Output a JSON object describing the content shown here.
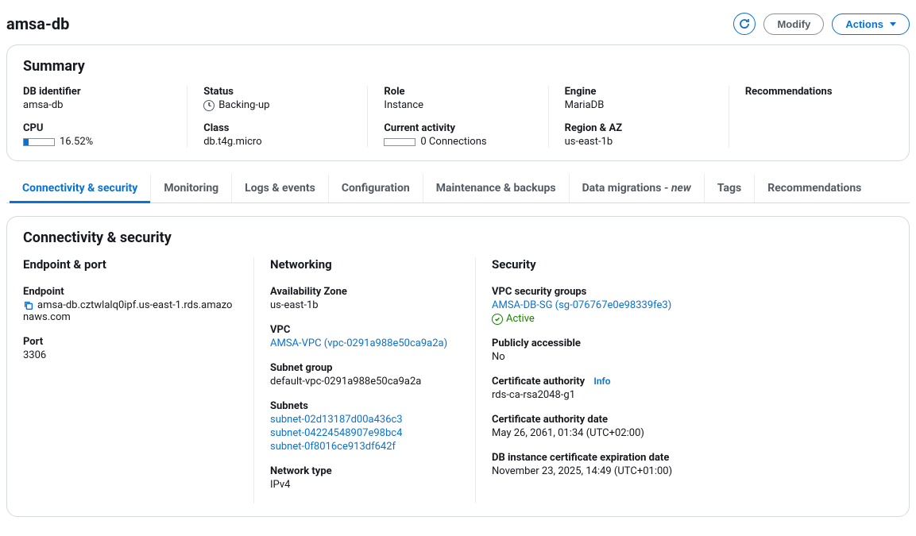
{
  "page": {
    "title": "amsa-db",
    "modify_label": "Modify",
    "actions_label": "Actions"
  },
  "summary": {
    "title": "Summary",
    "db_identifier_label": "DB identifier",
    "db_identifier": "amsa-db",
    "cpu_label": "CPU",
    "cpu_percent": 16.52,
    "cpu_text": "16.52%",
    "status_label": "Status",
    "status": "Backing-up",
    "class_label": "Class",
    "class": "db.t4g.micro",
    "role_label": "Role",
    "role": "Instance",
    "activity_label": "Current activity",
    "activity_connections": 0,
    "activity_text": "0 Connections",
    "engine_label": "Engine",
    "engine": "MariaDB",
    "region_label": "Region & AZ",
    "region": "us-east-1b",
    "recommendations_label": "Recommendations"
  },
  "tabs": {
    "connectivity": "Connectivity & security",
    "monitoring": "Monitoring",
    "logs": "Logs & events",
    "configuration": "Configuration",
    "maintenance": "Maintenance & backups",
    "migrations_prefix": "Data migrations - ",
    "migrations_suffix": "new",
    "tags": "Tags",
    "recommendations": "Recommendations"
  },
  "connectivity": {
    "title": "Connectivity & security",
    "endpoint_port_heading": "Endpoint & port",
    "endpoint_label": "Endpoint",
    "endpoint": "amsa-db.cztwlalq0ipf.us-east-1.rds.amazonaws.com",
    "port_label": "Port",
    "port": "3306",
    "networking_heading": "Networking",
    "az_label": "Availability Zone",
    "az": "us-east-1b",
    "vpc_label": "VPC",
    "vpc": "AMSA-VPC (vpc-0291a988e50ca9a2a)",
    "subnet_group_label": "Subnet group",
    "subnet_group": "default-vpc-0291a988e50ca9a2a",
    "subnets_label": "Subnets",
    "subnets": [
      "subnet-02d13187d00a436c3",
      "subnet-04224548907e98bc4",
      "subnet-0f8016ce913df642f"
    ],
    "network_type_label": "Network type",
    "network_type": "IPv4",
    "security_heading": "Security",
    "sg_label": "VPC security groups",
    "sg": "AMSA-DB-SG (sg-076767e0e98339fe3)",
    "sg_status": "Active",
    "public_label": "Publicly accessible",
    "public": "No",
    "ca_label": "Certificate authority",
    "ca_info": "Info",
    "ca": "rds-ca-rsa2048-g1",
    "ca_date_label": "Certificate authority date",
    "ca_date": "May 26, 2061, 01:34 (UTC+02:00)",
    "cert_exp_label": "DB instance certificate expiration date",
    "cert_exp": "November 23, 2025, 14:49 (UTC+01:00)"
  }
}
